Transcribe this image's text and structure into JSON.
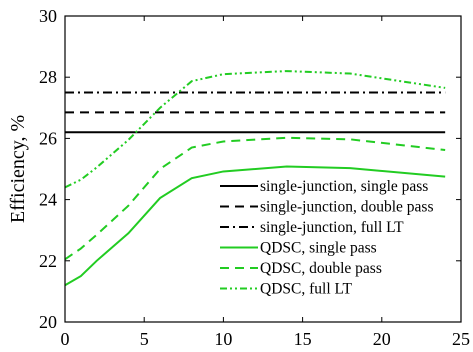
{
  "chart_data": {
    "type": "line",
    "title": "",
    "xlabel": "",
    "ylabel": "Efficiency, %",
    "xlim": [
      0,
      25
    ],
    "ylim": [
      20,
      30
    ],
    "xticks": [
      "0",
      "5",
      "10",
      "15",
      "20",
      "25"
    ],
    "yticks": [
      "20",
      "22",
      "24",
      "26",
      "28",
      "30"
    ],
    "grid": false,
    "legend_position": "bottom-right",
    "series": [
      {
        "name": "single-junction, single pass",
        "color": "#000000",
        "dash": "solid",
        "x": [
          0,
          24
        ],
        "y": [
          26.2,
          26.2
        ]
      },
      {
        "name": "single-junction, double pass",
        "color": "#000000",
        "dash": "dashed",
        "x": [
          0,
          24
        ],
        "y": [
          26.85,
          26.85
        ]
      },
      {
        "name": "single-junction, full LT",
        "color": "#000000",
        "dash": "dashdot",
        "x": [
          0,
          24
        ],
        "y": [
          27.5,
          27.5
        ]
      },
      {
        "name": "QDSC, single pass",
        "color": "#22cc22",
        "dash": "solid",
        "x": [
          0,
          1,
          2,
          4,
          6,
          8,
          10,
          14,
          18,
          24
        ],
        "y": [
          21.2,
          21.5,
          22.0,
          22.9,
          24.05,
          24.7,
          24.92,
          25.08,
          25.03,
          24.75
        ]
      },
      {
        "name": "QDSC, double pass",
        "color": "#22cc22",
        "dash": "dashed",
        "x": [
          0,
          1,
          2,
          4,
          6,
          8,
          10,
          14,
          18,
          24
        ],
        "y": [
          22.05,
          22.4,
          22.85,
          23.8,
          25.0,
          25.7,
          25.9,
          26.02,
          25.97,
          25.62
        ]
      },
      {
        "name": "QDSC, full LT",
        "color": "#22cc22",
        "dash": "dashdotdot",
        "x": [
          0,
          1,
          2,
          4,
          6,
          8,
          10,
          14,
          18,
          24
        ],
        "y": [
          24.4,
          24.65,
          25.05,
          25.95,
          27.0,
          27.87,
          28.1,
          28.2,
          28.12,
          27.65
        ]
      }
    ]
  }
}
